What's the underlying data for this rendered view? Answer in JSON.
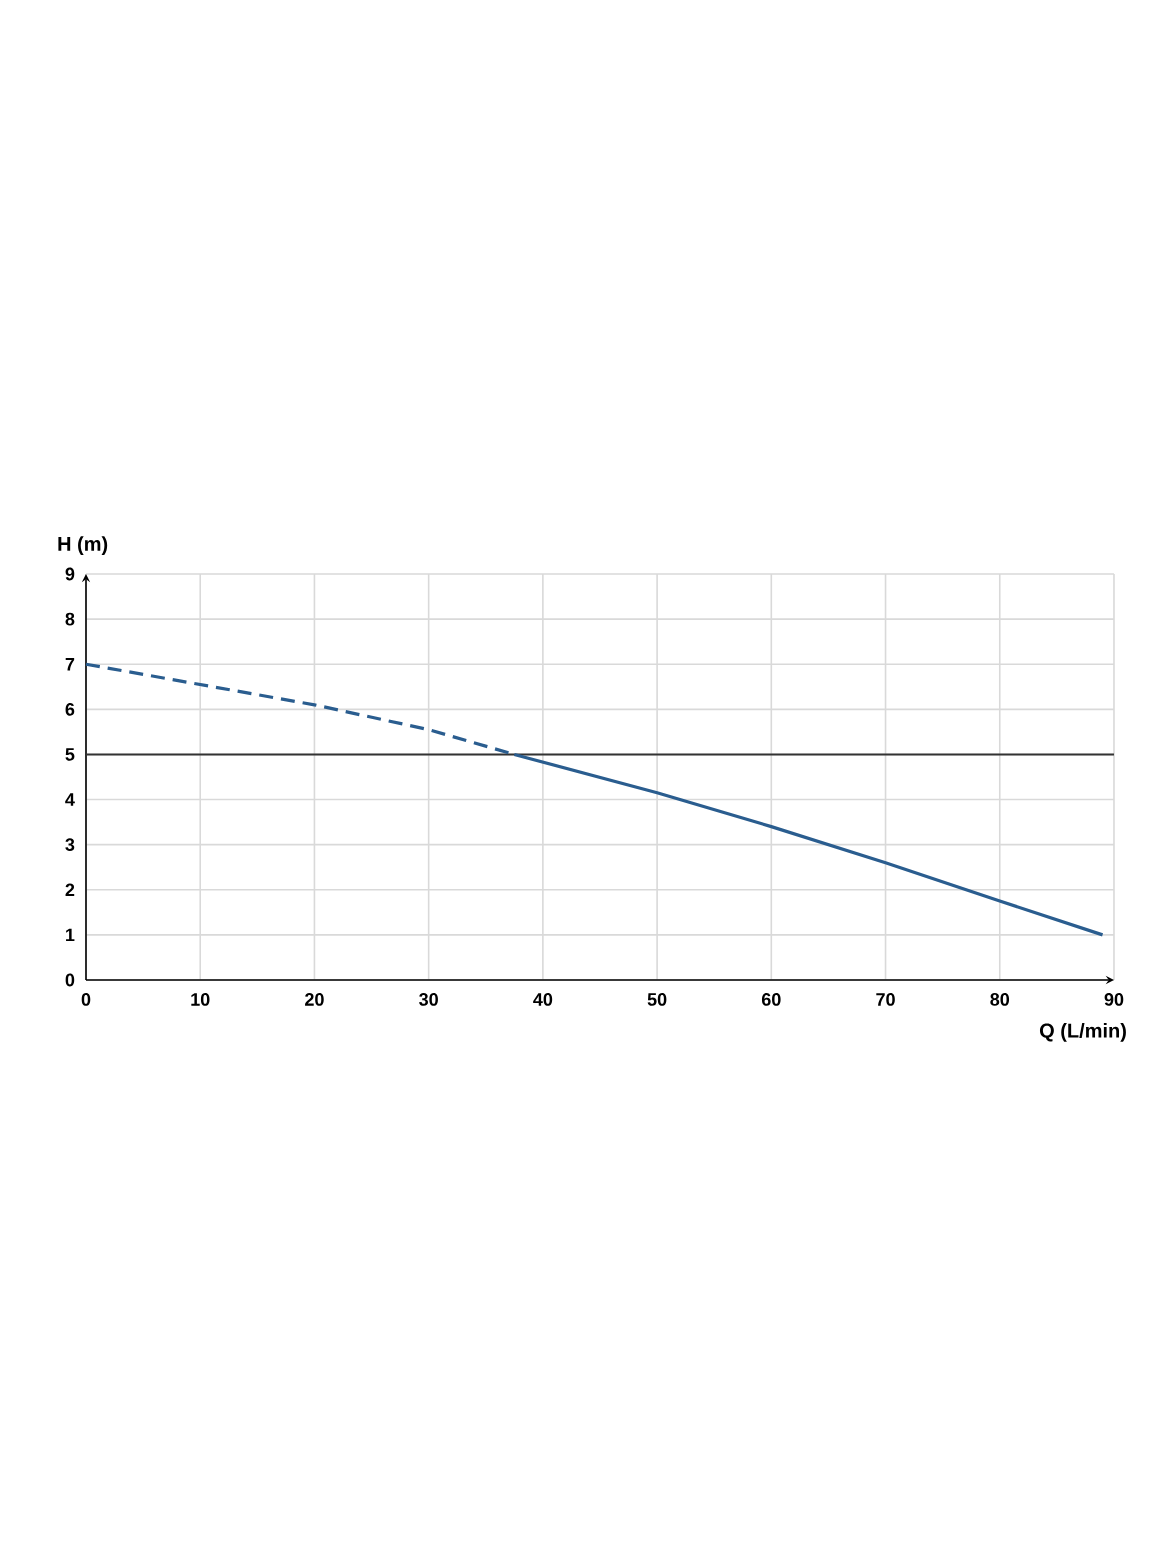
{
  "chart_data": {
    "type": "line",
    "xlabel": "Q (L/min)",
    "ylabel": "H (m)",
    "xlim": [
      0,
      90
    ],
    "ylim": [
      0,
      9
    ],
    "xticks": [
      0,
      10,
      20,
      30,
      40,
      50,
      60,
      70,
      80,
      90
    ],
    "yticks": [
      0,
      1,
      2,
      3,
      4,
      5,
      6,
      7,
      8,
      9
    ],
    "grid": true,
    "marker": "none",
    "series": [
      {
        "color": "#2a5d8f",
        "line_style": "dashed",
        "x": [
          0,
          10,
          20,
          30,
          37.5
        ],
        "values": [
          7,
          6.55,
          6.1,
          5.55,
          5
        ]
      },
      {
        "color": "#2a5d8f",
        "line_style": "solid",
        "x": [
          37.5,
          50,
          60,
          70,
          80,
          89
        ],
        "values": [
          5,
          4.15,
          3.4,
          2.6,
          1.75,
          1
        ]
      }
    ],
    "ref_lines": [
      {
        "axis": "y",
        "value": 5,
        "color": "#333333"
      }
    ]
  }
}
